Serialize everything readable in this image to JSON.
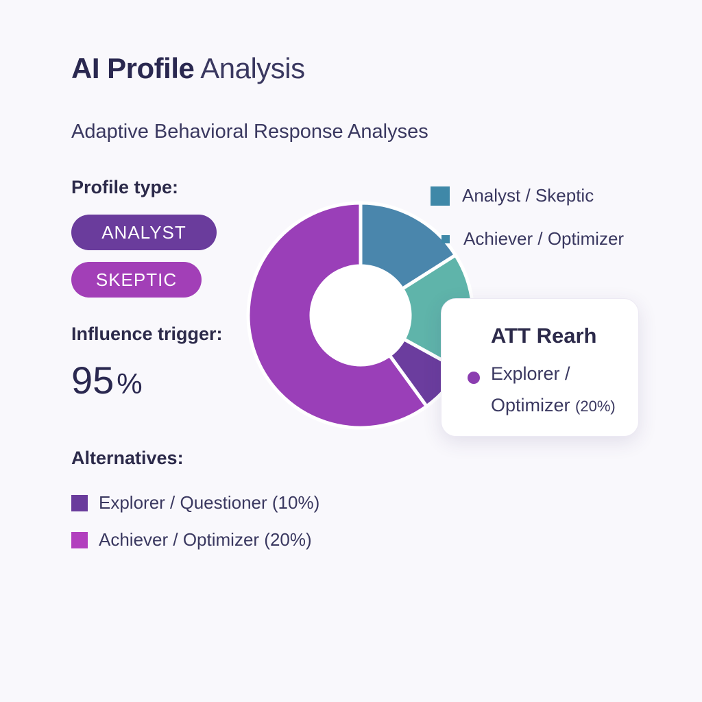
{
  "header": {
    "title_bold": "AI Profile",
    "title_light": "Analysis",
    "subtitle": "Adaptive Behavioral Response Analyses"
  },
  "profile": {
    "label": "Profile type:",
    "tags": [
      "ANALYST",
      "SKEPTIC"
    ]
  },
  "influence": {
    "label": "Influence trigger:",
    "value": "95",
    "unit": "%"
  },
  "alternatives": {
    "label": "Alternatives:",
    "items": [
      {
        "label": "Explorer / Questioner (10%)",
        "color": "#6a3c9c"
      },
      {
        "label": "Achiever / Optimizer (20%)",
        "color": "#b23fbe"
      }
    ]
  },
  "legend": [
    {
      "label": "Analyst / Skeptic",
      "color": "#3f88a8"
    },
    {
      "label": "Achiever / Optimizer",
      "color": "#3f88a8"
    }
  ],
  "tooltip": {
    "title": "ATT Rearh",
    "line1": "Explorer /",
    "line2": "Optimizer",
    "line2_pct": "(20%)",
    "dot_color": "#8b3db0"
  },
  "chart_data": {
    "type": "pie",
    "donut": true,
    "series": [
      {
        "value": 60,
        "color": "#9a3fb8"
      },
      {
        "value": 16,
        "color": "#4a86ac"
      },
      {
        "value": 17,
        "color": "#5fb4aa"
      },
      {
        "value": 7,
        "color": "#6b3d9e"
      }
    ]
  },
  "colors": {
    "accent": "#6a3c9c",
    "background": "#f9f8fc"
  }
}
